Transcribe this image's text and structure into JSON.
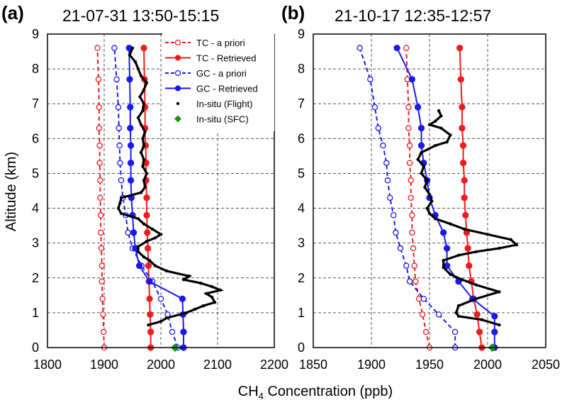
{
  "figure": {
    "xlabel_prefix": "CH",
    "xlabel_subscript": "4",
    "xlabel_suffix": " Concentration (ppb)"
  },
  "chart_data": [
    {
      "type": "line",
      "panel_label": "(a)",
      "title": "21-07-31  13:50-15:15",
      "ylabel": "Altitude (km)",
      "xlim": [
        1800,
        2200
      ],
      "ylim": [
        0,
        9
      ],
      "xticks": [
        "1800",
        "1900",
        "2000",
        "2100",
        "2200"
      ],
      "yticks": [
        "0",
        "1",
        "2",
        "3",
        "4",
        "5",
        "6",
        "7",
        "8",
        "9"
      ],
      "grid": true,
      "legend_position": "top-right",
      "legend": [
        {
          "label": "TC - a priori",
          "style": "dashed-open-circle",
          "color": "#ee1c1c"
        },
        {
          "label": "TC - Retrieved",
          "style": "solid-filled-circle",
          "color": "#ee1c1c"
        },
        {
          "label": "GC - a priori",
          "style": "dashed-open-circle",
          "color": "#1a1aee"
        },
        {
          "label": "GC - Retrieved",
          "style": "solid-filled-circle",
          "color": "#1a1aee"
        },
        {
          "label": "In-situ (Flight)",
          "style": "dot",
          "color": "#000000"
        },
        {
          "label": "In-situ (SFC)",
          "style": "diamond",
          "color": "#119911"
        }
      ],
      "series": [
        {
          "name": "TC - a priori",
          "color": "#ee1c1c",
          "style": "dashed-open-circle",
          "points": [
            [
              1900,
              0
            ],
            [
              1899,
              0.45
            ],
            [
              1898,
              0.95
            ],
            [
              1897,
              1.4
            ],
            [
              1896,
              1.9
            ],
            [
              1896,
              2.35
            ],
            [
              1895,
              2.85
            ],
            [
              1894,
              3.3
            ],
            [
              1894,
              3.8
            ],
            [
              1893,
              4.3
            ],
            [
              1893,
              4.8
            ],
            [
              1892,
              5.3
            ],
            [
              1892,
              5.8
            ],
            [
              1891,
              6.3
            ],
            [
              1891,
              6.9
            ],
            [
              1890,
              7.7
            ],
            [
              1888,
              8.6
            ]
          ]
        },
        {
          "name": "TC - Retrieved",
          "color": "#ee1c1c",
          "style": "solid-filled-circle",
          "points": [
            [
              1982,
              0
            ],
            [
              1982,
              0.45
            ],
            [
              1981,
              0.95
            ],
            [
              1980,
              1.4
            ],
            [
              1979,
              1.9
            ],
            [
              1978,
              2.35
            ],
            [
              1977,
              2.85
            ],
            [
              1976,
              3.3
            ],
            [
              1975,
              3.8
            ],
            [
              1975,
              4.3
            ],
            [
              1974,
              4.8
            ],
            [
              1974,
              5.3
            ],
            [
              1973,
              5.8
            ],
            [
              1972,
              6.3
            ],
            [
              1972,
              6.9
            ],
            [
              1971,
              7.7
            ],
            [
              1970,
              8.6
            ]
          ]
        },
        {
          "name": "GC - a priori",
          "color": "#1a1aee",
          "style": "dashed-open-circle",
          "points": [
            [
              2030,
              0
            ],
            [
              2020,
              0.45
            ],
            [
              2012,
              0.95
            ],
            [
              2000,
              1.4
            ],
            [
              1985,
              1.9
            ],
            [
              1966,
              2.35
            ],
            [
              1950,
              2.85
            ],
            [
              1942,
              3.3
            ],
            [
              1938,
              3.8
            ],
            [
              1933,
              4.3
            ],
            [
              1930,
              4.8
            ],
            [
              1928,
              5.3
            ],
            [
              1927,
              5.8
            ],
            [
              1926,
              6.3
            ],
            [
              1925,
              6.9
            ],
            [
              1922,
              7.7
            ],
            [
              1918,
              8.6
            ]
          ]
        },
        {
          "name": "GC - Retrieved",
          "color": "#1a1aee",
          "style": "solid-filled-circle",
          "points": [
            [
              2040,
              0
            ],
            [
              2040,
              0.45
            ],
            [
              2039,
              0.95
            ],
            [
              2038,
              1.4
            ],
            [
              1980,
              1.9
            ],
            [
              1962,
              2.35
            ],
            [
              1955,
              2.85
            ],
            [
              1952,
              3.3
            ],
            [
              1950,
              3.8
            ],
            [
              1948,
              4.3
            ],
            [
              1947,
              4.8
            ],
            [
              1947,
              5.3
            ],
            [
              1947,
              5.8
            ],
            [
              1946,
              6.3
            ],
            [
              1946,
              6.9
            ],
            [
              1945,
              7.7
            ],
            [
              1944,
              8.6
            ]
          ]
        },
        {
          "name": "In-situ (Flight)",
          "color": "#000000",
          "style": "dot",
          "points": [
            [
              1978,
              0.65
            ],
            [
              2000,
              0.75
            ],
            [
              2010,
              0.85
            ],
            [
              2045,
              1.0
            ],
            [
              2060,
              1.1
            ],
            [
              2075,
              1.2
            ],
            [
              2095,
              1.3
            ],
            [
              2090,
              1.45
            ],
            [
              2080,
              1.55
            ],
            [
              2105,
              1.65
            ],
            [
              2090,
              1.75
            ],
            [
              2070,
              1.85
            ],
            [
              2040,
              1.95
            ],
            [
              2050,
              2.05
            ],
            [
              2010,
              2.2
            ],
            [
              1990,
              2.35
            ],
            [
              1980,
              2.5
            ],
            [
              1970,
              2.6
            ],
            [
              1960,
              2.75
            ],
            [
              1960,
              2.9
            ],
            [
              1975,
              3.05
            ],
            [
              1990,
              3.15
            ],
            [
              2000,
              3.25
            ],
            [
              1985,
              3.4
            ],
            [
              1970,
              3.55
            ],
            [
              1960,
              3.7
            ],
            [
              1930,
              3.85
            ],
            [
              1925,
              4.0
            ],
            [
              1928,
              4.15
            ],
            [
              1930,
              4.3
            ],
            [
              1965,
              4.45
            ],
            [
              1972,
              4.6
            ],
            [
              1970,
              4.8
            ],
            [
              1975,
              5.0
            ],
            [
              1968,
              5.2
            ],
            [
              1970,
              5.4
            ],
            [
              1965,
              5.6
            ],
            [
              1970,
              5.8
            ],
            [
              1968,
              6.0
            ],
            [
              1972,
              6.2
            ],
            [
              1965,
              6.4
            ],
            [
              1960,
              6.6
            ],
            [
              1968,
              6.8
            ],
            [
              1970,
              7.0
            ],
            [
              1963,
              7.2
            ],
            [
              1970,
              7.4
            ],
            [
              1975,
              7.6
            ],
            [
              1965,
              7.8
            ],
            [
              1960,
              8.0
            ],
            [
              1955,
              8.2
            ],
            [
              1945,
              8.4
            ],
            [
              1950,
              8.6
            ]
          ]
        },
        {
          "name": "In-situ (SFC)",
          "color": "#119911",
          "style": "diamond",
          "points": [
            [
              2025,
              0
            ]
          ]
        }
      ]
    },
    {
      "type": "line",
      "panel_label": "(b)",
      "title": "21-10-17  12:35-12:57",
      "ylabel": "",
      "xlim": [
        1850,
        2050
      ],
      "ylim": [
        0,
        9
      ],
      "xticks": [
        "1850",
        "1900",
        "1950",
        "2000",
        "2050"
      ],
      "yticks": [
        "0",
        "1",
        "2",
        "3",
        "4",
        "5",
        "6",
        "7",
        "8",
        "9"
      ],
      "grid": true,
      "series": [
        {
          "name": "TC - a priori",
          "color": "#ee1c1c",
          "style": "dashed-open-circle",
          "points": [
            [
              1950,
              0
            ],
            [
              1947,
              0.45
            ],
            [
              1944,
              0.95
            ],
            [
              1941,
              1.4
            ],
            [
              1938,
              1.9
            ],
            [
              1937,
              2.35
            ],
            [
              1936,
              2.85
            ],
            [
              1935,
              3.3
            ],
            [
              1935,
              3.8
            ],
            [
              1934,
              4.3
            ],
            [
              1934,
              4.8
            ],
            [
              1933,
              5.3
            ],
            [
              1933,
              5.8
            ],
            [
              1932,
              6.3
            ],
            [
              1932,
              6.9
            ],
            [
              1931,
              7.7
            ],
            [
              1930,
              8.6
            ]
          ]
        },
        {
          "name": "TC - Retrieved",
          "color": "#ee1c1c",
          "style": "solid-filled-circle",
          "points": [
            [
              1995,
              0
            ],
            [
              1993,
              0.45
            ],
            [
              1991,
              0.95
            ],
            [
              1988,
              1.4
            ],
            [
              1986,
              1.9
            ],
            [
              1984,
              2.35
            ],
            [
              1983,
              2.85
            ],
            [
              1982,
              3.3
            ],
            [
              1981,
              3.8
            ],
            [
              1980,
              4.3
            ],
            [
              1980,
              4.8
            ],
            [
              1979,
              5.3
            ],
            [
              1979,
              5.8
            ],
            [
              1978,
              6.3
            ],
            [
              1978,
              6.9
            ],
            [
              1977,
              7.7
            ],
            [
              1976,
              8.6
            ]
          ]
        },
        {
          "name": "GC - a priori",
          "color": "#1a1aee",
          "style": "dashed-open-circle",
          "points": [
            [
              1972,
              0
            ],
            [
              1972,
              0.45
            ],
            [
              1958,
              0.95
            ],
            [
              1945,
              1.4
            ],
            [
              1933,
              1.9
            ],
            [
              1930,
              2.35
            ],
            [
              1925,
              2.85
            ],
            [
              1921,
              3.3
            ],
            [
              1919,
              3.8
            ],
            [
              1916,
              4.3
            ],
            [
              1914,
              4.8
            ],
            [
              1913,
              5.3
            ],
            [
              1910,
              5.8
            ],
            [
              1906,
              6.3
            ],
            [
              1903,
              6.9
            ],
            [
              1899,
              7.7
            ],
            [
              1890,
              8.6
            ]
          ]
        },
        {
          "name": "GC - Retrieved",
          "color": "#1a1aee",
          "style": "solid-filled-circle",
          "points": [
            [
              2006,
              0
            ],
            [
              2006,
              0.45
            ],
            [
              2006,
              0.9
            ],
            [
              1987,
              1.4
            ],
            [
              1975,
              1.9
            ],
            [
              1965,
              2.35
            ],
            [
              1965,
              2.85
            ],
            [
              1962,
              3.3
            ],
            [
              1955,
              3.8
            ],
            [
              1950,
              4.3
            ],
            [
              1948,
              4.8
            ],
            [
              1945,
              5.3
            ],
            [
              1943,
              5.8
            ],
            [
              1943,
              6.3
            ],
            [
              1940,
              6.9
            ],
            [
              1935,
              7.7
            ],
            [
              1922,
              8.6
            ]
          ]
        },
        {
          "name": "In-situ (Flight)",
          "color": "#000000",
          "style": "dot",
          "points": [
            [
              2010,
              0.65
            ],
            [
              1995,
              0.8
            ],
            [
              1975,
              0.9
            ],
            [
              1973,
              1.0
            ],
            [
              1975,
              1.2
            ],
            [
              1990,
              1.4
            ],
            [
              2010,
              1.6
            ],
            [
              1990,
              1.8
            ],
            [
              1978,
              1.95
            ],
            [
              1968,
              2.1
            ],
            [
              1962,
              2.3
            ],
            [
              1962,
              2.5
            ],
            [
              1975,
              2.65
            ],
            [
              1990,
              2.75
            ],
            [
              2010,
              2.85
            ],
            [
              2025,
              2.95
            ],
            [
              2020,
              3.1
            ],
            [
              2000,
              3.25
            ],
            [
              1980,
              3.4
            ],
            [
              1968,
              3.55
            ],
            [
              1955,
              3.7
            ],
            [
              1950,
              3.85
            ],
            [
              1948,
              4.0
            ],
            [
              1952,
              4.2
            ],
            [
              1950,
              4.4
            ],
            [
              1946,
              4.6
            ],
            [
              1948,
              4.8
            ],
            [
              1943,
              5.0
            ],
            [
              1945,
              5.2
            ],
            [
              1940,
              5.4
            ],
            [
              1943,
              5.6
            ],
            [
              1955,
              5.8
            ],
            [
              1965,
              5.9
            ],
            [
              1968,
              6.1
            ],
            [
              1960,
              6.3
            ],
            [
              1950,
              6.4
            ],
            [
              1955,
              6.5
            ],
            [
              1960,
              6.65
            ],
            [
              1958,
              6.8
            ]
          ]
        },
        {
          "name": "In-situ (SFC)",
          "color": "#119911",
          "style": "diamond",
          "points": [
            [
              2004,
              0
            ]
          ]
        }
      ]
    }
  ]
}
